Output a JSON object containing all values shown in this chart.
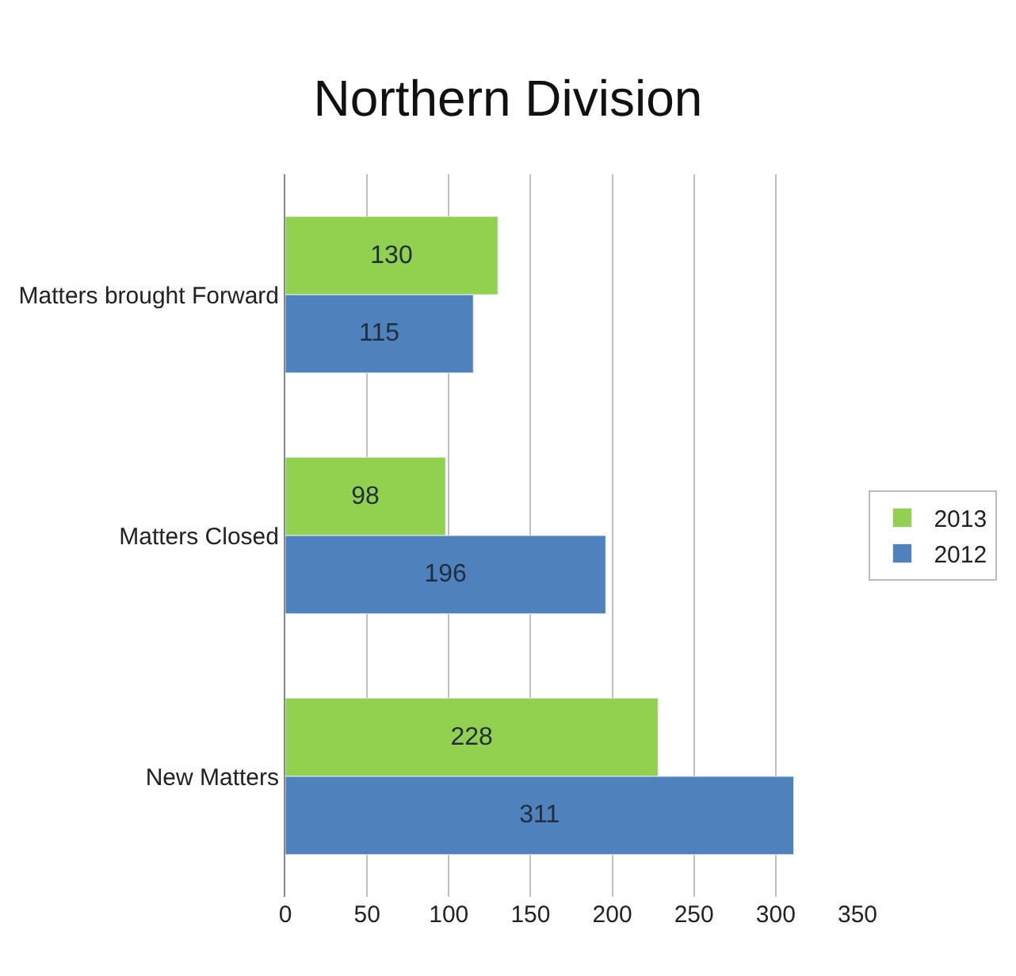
{
  "chart_data": {
    "type": "bar",
    "title": "Northern Division",
    "orientation": "horizontal",
    "categories": [
      "Matters brought Forward",
      "Matters Closed",
      "New Matters"
    ],
    "series": [
      {
        "name": "2013",
        "color": "#92d050",
        "values": [
          130,
          98,
          228
        ]
      },
      {
        "name": "2012",
        "color": "#4f81bd",
        "values": [
          115,
          196,
          311
        ]
      }
    ],
    "xlim": [
      0,
      350
    ],
    "xticks": [
      0,
      50,
      100,
      150,
      200,
      250,
      300,
      350
    ],
    "grid": "x",
    "legend": "right",
    "data_labels": true
  }
}
